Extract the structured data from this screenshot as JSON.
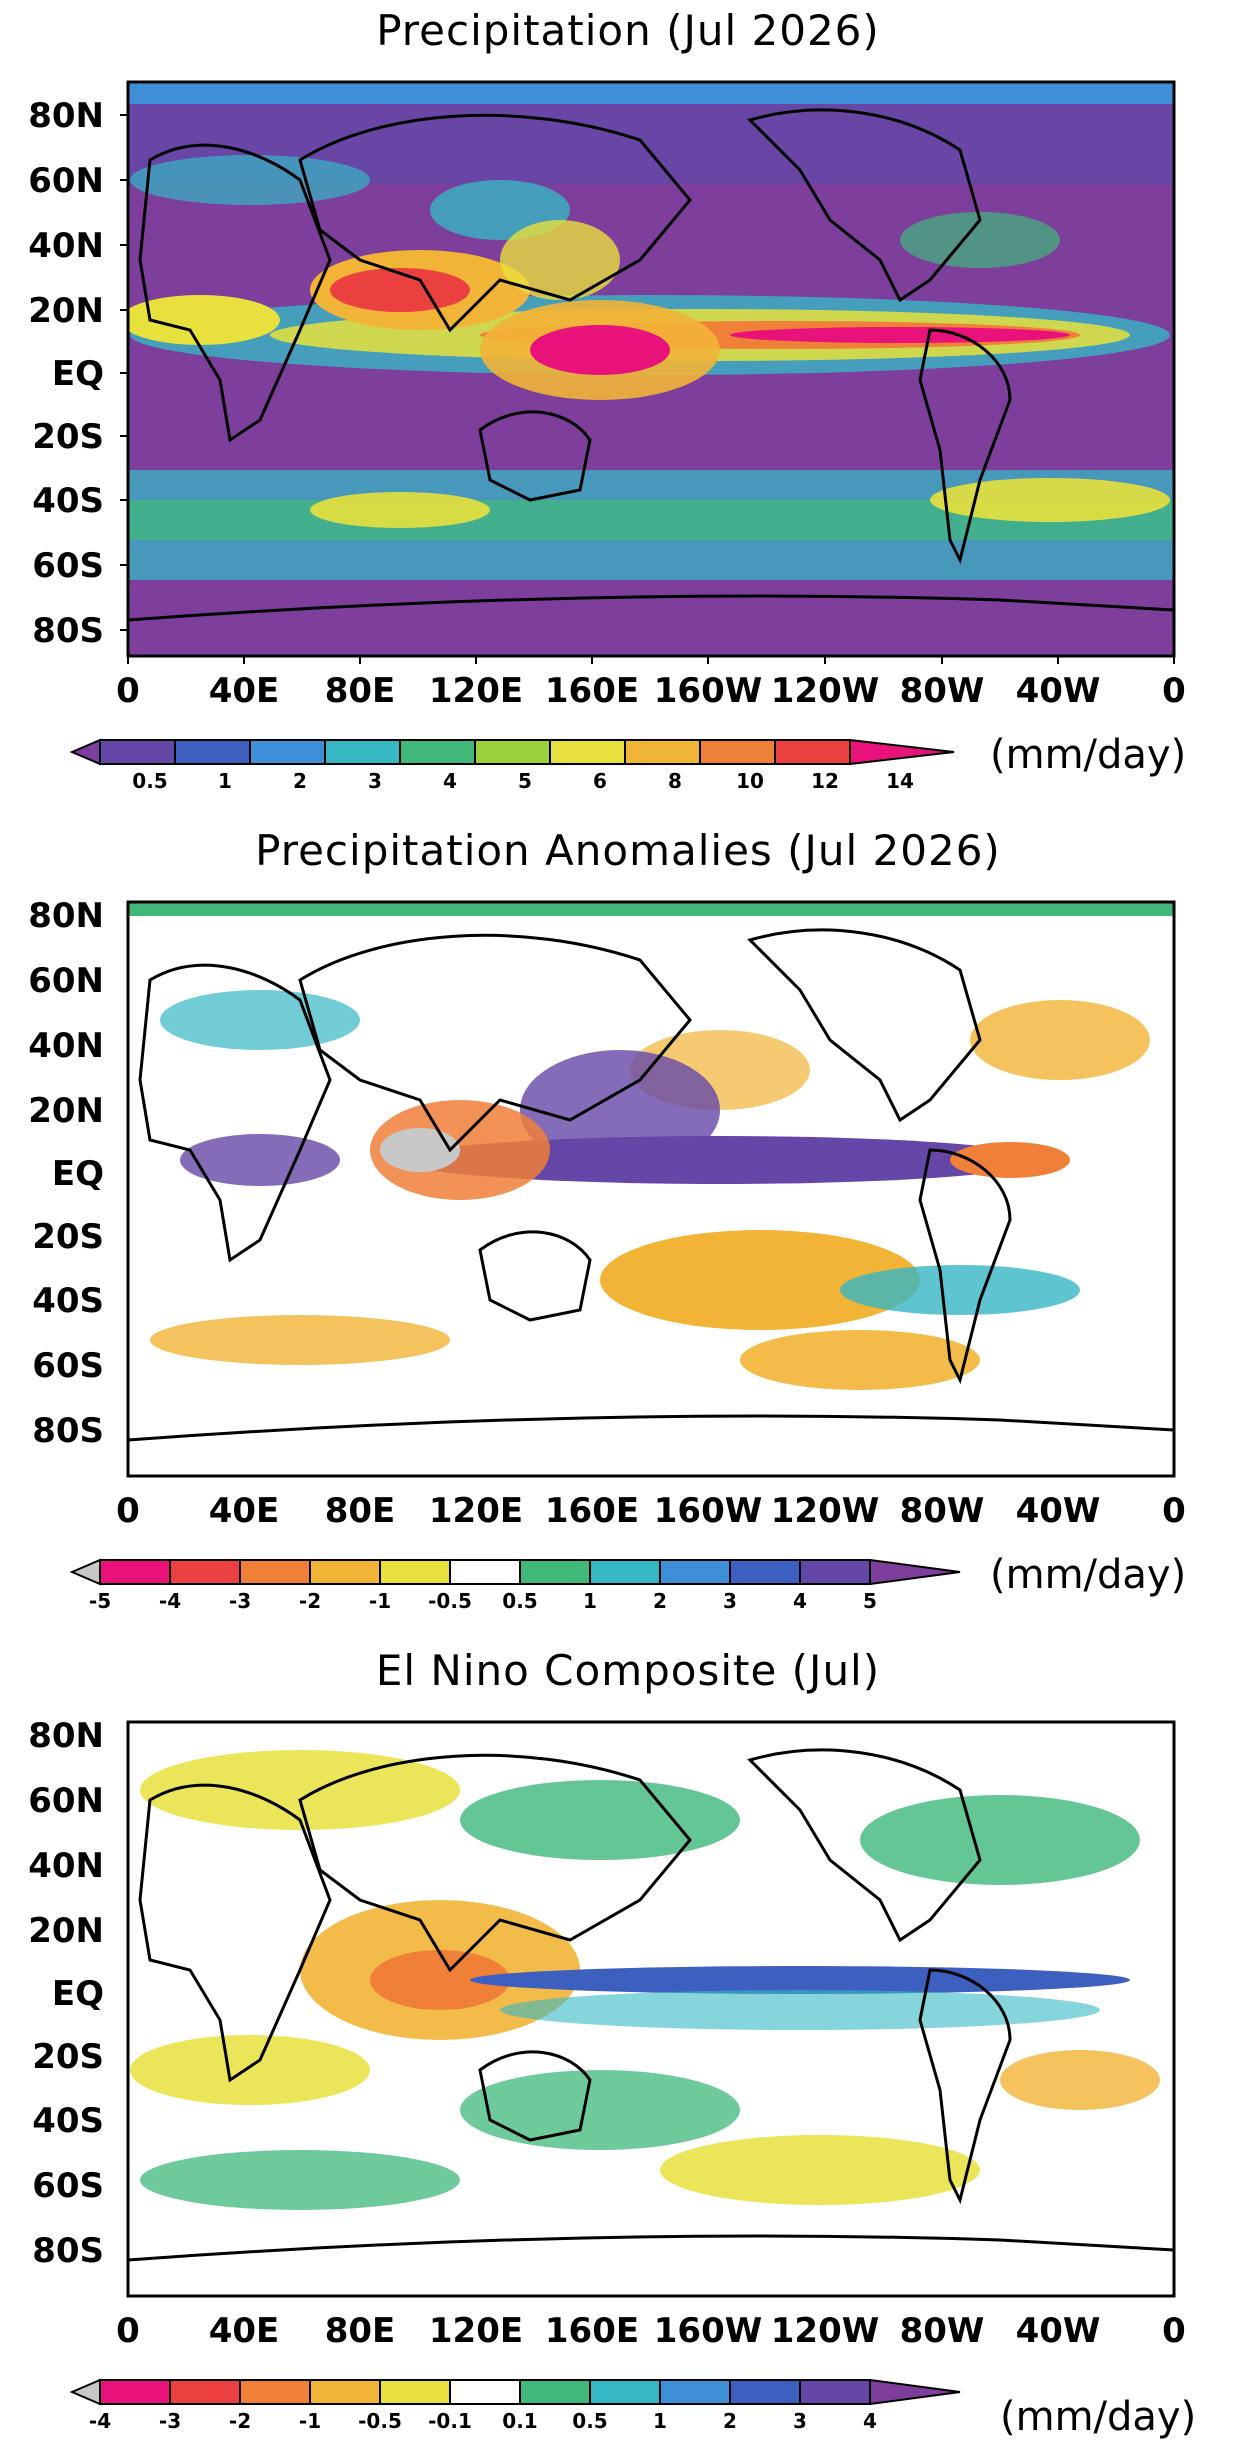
{
  "panels": [
    {
      "title": "Precipitation (Jul 2026)",
      "lat_labels": [
        "80N",
        "60N",
        "40N",
        "20N",
        "EQ",
        "20S",
        "40S",
        "60S",
        "80S"
      ],
      "lon_labels": [
        "0",
        "40E",
        "80E",
        "120E",
        "160E",
        "160W",
        "120W",
        "80W",
        "40W",
        "0"
      ],
      "colorbar": {
        "labels": [
          "0.5",
          "1",
          "2",
          "3",
          "4",
          "5",
          "6",
          "8",
          "10",
          "12",
          "14"
        ],
        "colors": [
          "#7d3e9c",
          "#6547a8",
          "#3d5fbf",
          "#3f8fd8",
          "#36b7c4",
          "#3fb87a",
          "#9ccf3c",
          "#e8e03c",
          "#f2b436",
          "#f07f38",
          "#ea4040",
          "#e8127a"
        ],
        "unit": "(mm/day)"
      }
    },
    {
      "title": "Precipitation Anomalies (Jul 2026)",
      "lat_labels": [
        "80N",
        "60N",
        "40N",
        "20N",
        "EQ",
        "20S",
        "40S",
        "60S",
        "80S"
      ],
      "lon_labels": [
        "0",
        "40E",
        "80E",
        "120E",
        "160E",
        "160W",
        "120W",
        "80W",
        "40W",
        "0"
      ],
      "colorbar": {
        "labels": [
          "-5",
          "-4",
          "-3",
          "-2",
          "-1",
          "-0.5",
          "0.5",
          "1",
          "2",
          "3",
          "4",
          "5"
        ],
        "colors": [
          "#c8c8c8",
          "#e8127a",
          "#ea4040",
          "#f07f38",
          "#f2b436",
          "#e8e03c",
          "#ffffff",
          "#3fb87a",
          "#36b7c4",
          "#3f8fd8",
          "#3d5fbf",
          "#6547a8",
          "#7d3e9c"
        ],
        "unit": "(mm/day)"
      }
    },
    {
      "title": "El Nino Composite (Jul)",
      "lat_labels": [
        "80N",
        "60N",
        "40N",
        "20N",
        "EQ",
        "20S",
        "40S",
        "60S",
        "80S"
      ],
      "lon_labels": [
        "0",
        "40E",
        "80E",
        "120E",
        "160E",
        "160W",
        "120W",
        "80W",
        "40W",
        "0"
      ],
      "colorbar": {
        "labels": [
          "-4",
          "-3",
          "-2",
          "-1",
          "-0.5",
          "-0.1",
          "0.1",
          "0.5",
          "1",
          "2",
          "3",
          "4"
        ],
        "colors": [
          "#c8c8c8",
          "#e8127a",
          "#ea4040",
          "#f07f38",
          "#f2b436",
          "#e8e03c",
          "#ffffff",
          "#3fb87a",
          "#36b7c4",
          "#3f8fd8",
          "#3d5fbf",
          "#6547a8",
          "#7d3e9c"
        ],
        "unit": "(mm/day)"
      }
    }
  ]
}
